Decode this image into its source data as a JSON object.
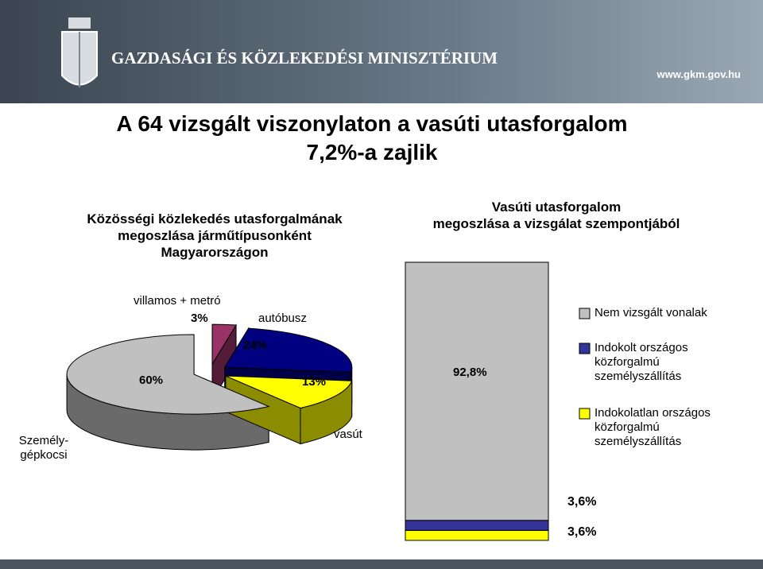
{
  "header": {
    "ministry": "GAZDASÁGI ÉS KÖZLEKEDÉSI MINISZTÉRIUM",
    "url": "www.gkm.gov.hu"
  },
  "title_lines": [
    "A 64 vizsgált viszonylaton a vasúti utasforgalom",
    "7,2%-a zajlik"
  ],
  "chart_data": [
    {
      "type": "pie",
      "title_lines": [
        "Közösségi közlekedés utasforgalmának",
        "megoszlása járműtípusonként",
        "Magyarországon"
      ],
      "categories": [
        "villamos + metró",
        "autóbusz",
        "vasút",
        "Személy-gépkocsi"
      ],
      "values": [
        3,
        24,
        13,
        60
      ],
      "value_labels": [
        "3%",
        "24%",
        "13%",
        "60%"
      ],
      "colors": [
        "#993366",
        "#000080",
        "#ffff00",
        "#c0c0c0"
      ]
    },
    {
      "type": "stacked-bar",
      "title_lines": [
        "Vasúti utasforgalom",
        "megoszlása a vizsgálat szempontjából"
      ],
      "categories": [
        null
      ],
      "ylim": [
        0,
        100
      ],
      "legend": "right",
      "series": [
        {
          "name": "Nem vizsgált vonalak",
          "color": "#c0c0c0",
          "values": [
            92.8
          ],
          "value_labels": [
            "92,8%"
          ]
        },
        {
          "name": "Indokolt országos közforgalmú személyszállítás",
          "color": "#333399",
          "values": [
            3.6
          ],
          "value_labels": [
            "3,6%"
          ]
        },
        {
          "name": "Indokolatlan országos közforgalmú személyszállítás",
          "color": "#ffff00",
          "values": [
            3.6
          ],
          "value_labels": [
            "3,6%"
          ]
        }
      ]
    }
  ]
}
